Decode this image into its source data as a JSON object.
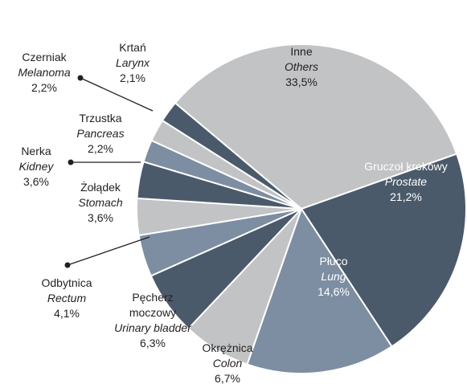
{
  "chart_data": {
    "type": "pie",
    "categories": [
      "Inne",
      "Gruczoł krokowy",
      "Płuco",
      "Okrężnica",
      "Pęcherz moczowy",
      "Odbytnica",
      "Żołądek",
      "Nerka",
      "Trzustka",
      "Czerniak",
      "Krtań"
    ],
    "latin": [
      "Others",
      "Prostate",
      "Lung",
      "Colon",
      "Urinary bladder",
      "Rectum",
      "Stomach",
      "Kidney",
      "Pancreas",
      "Melanoma",
      "Larynx"
    ],
    "values": [
      33.5,
      21.2,
      14.6,
      6.7,
      6.3,
      4.1,
      3.6,
      3.6,
      2.2,
      2.2,
      2.1
    ],
    "value_labels": [
      "33,5%",
      "21,2%",
      "14,6%",
      "6,7%",
      "6,3%",
      "4,1%",
      "3,6%",
      "3,6%",
      "2,2%",
      "2,2%",
      "2,1%"
    ],
    "colors": [
      "#c2c3c5",
      "#4b5a6a",
      "#7d8ea2",
      "#c2c3c5",
      "#4b5a6a",
      "#7d8ea2",
      "#c2c3c5",
      "#4b5a6a",
      "#7d8ea2",
      "#c2c3c5",
      "#4b5a6a"
    ]
  }
}
